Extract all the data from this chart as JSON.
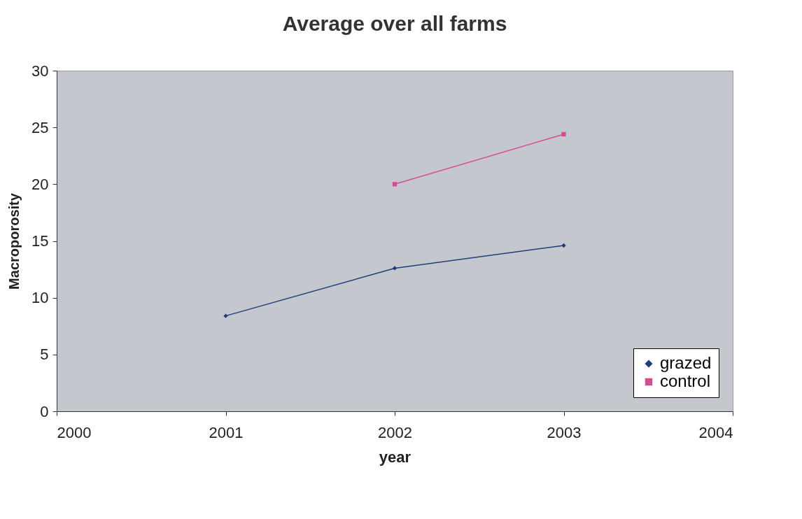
{
  "chart_data": {
    "type": "line",
    "title": "Average over all farms",
    "xlabel": "year",
    "ylabel": "Macroporosity",
    "xlim": [
      2000,
      2004
    ],
    "xticks": [
      2000,
      2001,
      2002,
      2003,
      2004
    ],
    "ylim": [
      0,
      30
    ],
    "yticks": [
      0,
      5,
      10,
      15,
      20,
      25,
      30
    ],
    "grid": false,
    "legend": "bottom right",
    "series": [
      {
        "name": "grazed",
        "color": "#1f3d7a",
        "marker": "diamond",
        "x": [
          2001,
          2002,
          2003
        ],
        "values": [
          8.4,
          12.6,
          14.6
        ]
      },
      {
        "name": "control",
        "color": "#d94a96",
        "marker": "square",
        "x": [
          2002,
          2003
        ],
        "values": [
          20.0,
          24.4
        ]
      }
    ]
  }
}
